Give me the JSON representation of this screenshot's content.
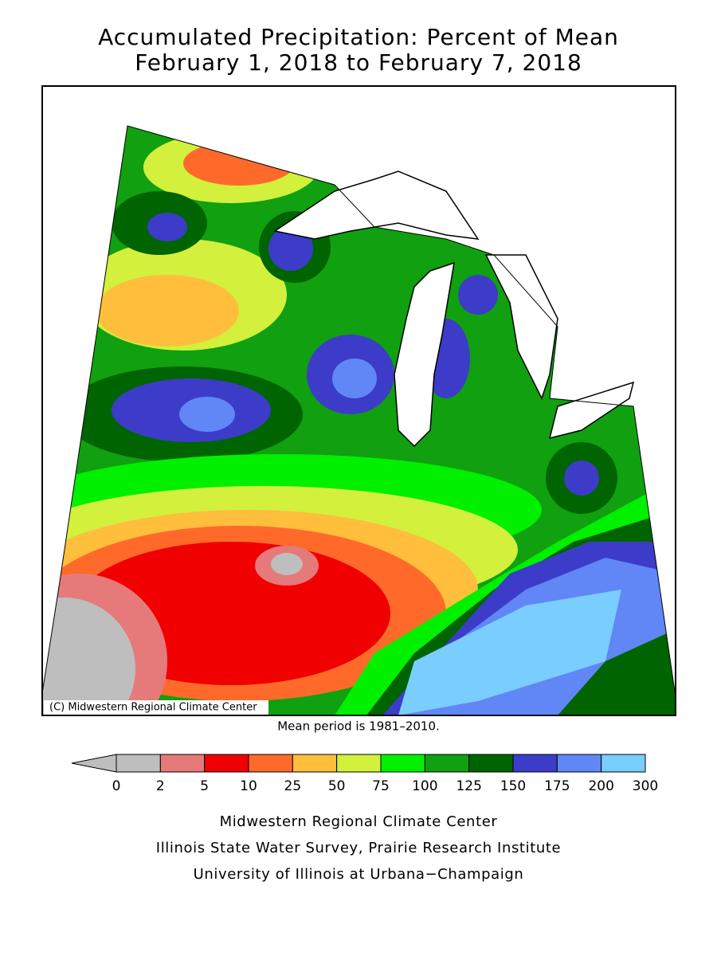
{
  "title": [
    "Accumulated Precipitation: Percent of Mean",
    "February 1, 2018 to February 7, 2018"
  ],
  "map": {
    "credit": "(C) Midwestern Regional Climate Center"
  },
  "note": "Mean period is 1981–2010.",
  "legend": {
    "ticks": [
      0,
      2,
      5,
      10,
      25,
      50,
      75,
      100,
      125,
      150,
      175,
      200,
      300
    ],
    "colors": [
      "#bebebe",
      "#bebebe",
      "#e67a7a",
      "#f00000",
      "#ff6a2a",
      "#ffbe3c",
      "#d2f03c",
      "#00f000",
      "#10a010",
      "#006400",
      "#3c3cc8",
      "#6087f5",
      "#7acdff"
    ]
  },
  "footer": [
    "Midwestern Regional Climate Center",
    "Illinois State Water Survey, Prairie Research Institute",
    "University of Illinois at Urbana−Champaign"
  ]
}
